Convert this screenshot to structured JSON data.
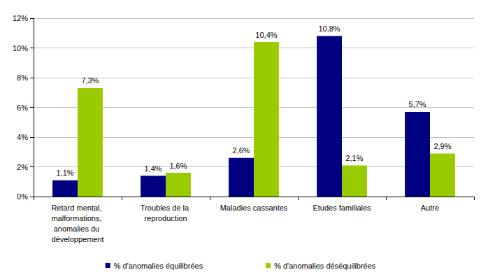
{
  "chart_data": {
    "type": "bar",
    "categories": [
      "Retard mental, malformations, anomalies du développement",
      "Troubles de la reproduction",
      "Maladies cassantes",
      "Etudes familiales",
      "Autre"
    ],
    "series": [
      {
        "name": "% d'anomalies équilibrées",
        "color": "#000080",
        "values": [
          1.1,
          1.4,
          2.6,
          10.8,
          5.7
        ],
        "value_labels": [
          "1,1%",
          "1,4%",
          "2,6%",
          "10,8%",
          "5,7%"
        ]
      },
      {
        "name": "% d'anomalies déséquilibrées",
        "color": "#99CC00",
        "values": [
          7.3,
          1.6,
          10.4,
          2.1,
          2.9
        ],
        "value_labels": [
          "7,3%",
          "1,6%",
          "10,4%",
          "2,1%",
          "2,9%"
        ]
      }
    ],
    "ylim": [
      0,
      12
    ],
    "yticks": [
      {
        "value": 0,
        "label": "0%"
      },
      {
        "value": 2,
        "label": "2%"
      },
      {
        "value": 4,
        "label": "4%"
      },
      {
        "value": 6,
        "label": "6%"
      },
      {
        "value": 8,
        "label": "8%"
      },
      {
        "value": 10,
        "label": "10%"
      },
      {
        "value": 12,
        "label": "12%"
      }
    ],
    "grid": true,
    "legend": "bottom",
    "data_labels": true
  }
}
